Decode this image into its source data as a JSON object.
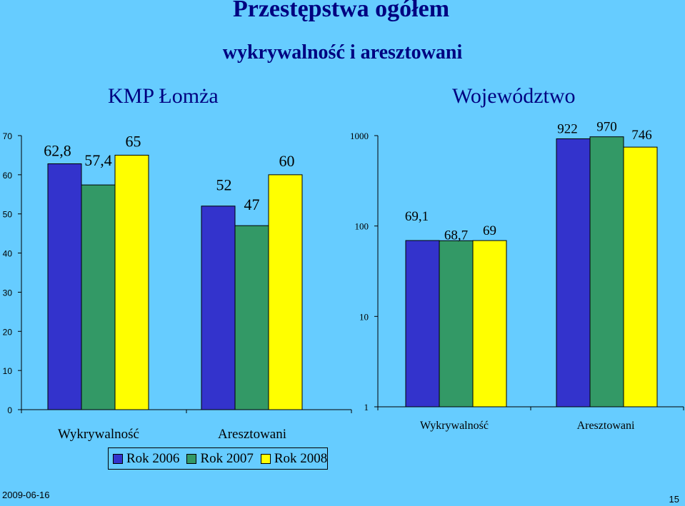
{
  "title": "Przestępstwa ogółem",
  "subtitle": "wykrywalność i aresztowani",
  "footer": {
    "date": "2009-06-16",
    "page": "15"
  },
  "legend": [
    {
      "label": "Rok 2006",
      "color": "#3333CC"
    },
    {
      "label": "Rok 2007",
      "color": "#339966"
    },
    {
      "label": "Rok 2008",
      "color": "#FFFF00"
    }
  ],
  "chart_data": [
    {
      "type": "bar",
      "title": "KMP Łomża",
      "categories": [
        "Wykrywalność",
        "Aresztowani"
      ],
      "series": [
        {
          "name": "Rok 2006",
          "values": [
            62.8,
            52
          ],
          "labels": [
            "62,8",
            "52"
          ]
        },
        {
          "name": "Rok 2007",
          "values": [
            57.4,
            47
          ],
          "labels": [
            "57,4",
            "47"
          ]
        },
        {
          "name": "Rok 2008",
          "values": [
            65,
            60
          ],
          "labels": [
            "65",
            "60"
          ]
        }
      ],
      "ylim": [
        0,
        70
      ],
      "yticks": [
        "0",
        "10",
        "20",
        "30",
        "40",
        "50",
        "60",
        "70"
      ],
      "yscale": "linear",
      "grid": false,
      "legend": "bottom"
    },
    {
      "type": "bar",
      "title": "Województwo",
      "categories": [
        "Wykrywalność",
        "Aresztowani"
      ],
      "series": [
        {
          "name": "Rok 2006",
          "values": [
            69.1,
            922
          ],
          "labels": [
            "69,1",
            "922"
          ]
        },
        {
          "name": "Rok 2007",
          "values": [
            68.7,
            970
          ],
          "labels": [
            "68,7",
            "970"
          ]
        },
        {
          "name": "Rok 2008",
          "values": [
            69,
            746
          ],
          "labels": [
            "69",
            "746"
          ]
        }
      ],
      "ylim": [
        1,
        1000
      ],
      "yticks": [
        "1",
        "10",
        "100",
        "1000"
      ],
      "yscale": "log",
      "grid": false
    }
  ]
}
